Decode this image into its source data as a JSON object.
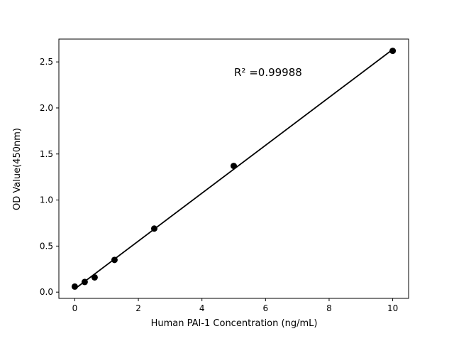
{
  "chart_data": {
    "type": "scatter",
    "title": "",
    "xlabel": "Human PAI-1 Concentration (ng/mL)",
    "ylabel": "OD Value(450nm)",
    "annotation": "R² =0.99988",
    "x": [
      0,
      0.3125,
      0.625,
      1.25,
      2.5,
      5,
      10
    ],
    "y": [
      0.06,
      0.11,
      0.16,
      0.35,
      0.69,
      1.37,
      2.62
    ],
    "fit_line": {
      "x0": 0,
      "y0": 0.034,
      "x1": 10,
      "y1": 2.635
    },
    "xlim": [
      -0.5,
      10.5
    ],
    "ylim": [
      -0.068,
      2.748
    ],
    "xticks": [
      0,
      2,
      4,
      6,
      8,
      10
    ],
    "xtick_labels": [
      "0",
      "2",
      "4",
      "6",
      "8",
      "10"
    ],
    "yticks": [
      0,
      0.5,
      1.0,
      1.5,
      2.0,
      2.5
    ],
    "ytick_labels": [
      "0.0",
      "0.5",
      "1.0",
      "1.5",
      "2.0",
      "2.5"
    ],
    "grid": false,
    "legend_position": "none",
    "colors": {
      "marker": "#000000",
      "line": "#000000",
      "axis": "#000000",
      "background": "#ffffff"
    }
  }
}
